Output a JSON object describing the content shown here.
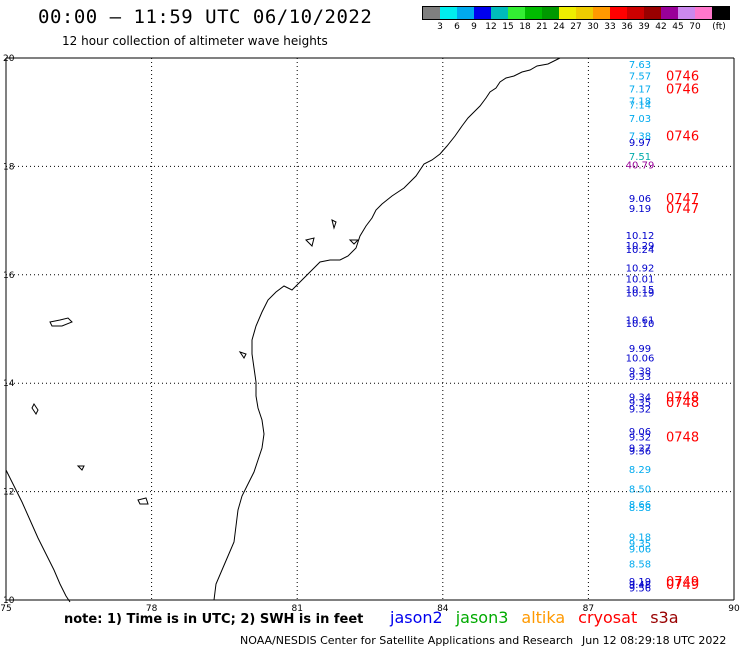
{
  "header": {
    "title": "00:00 – 11:59 UTC 06/10/2022",
    "subtitle": "12 hour collection of altimeter wave heights"
  },
  "legend": {
    "unit": "(ft)",
    "labels": [
      "3",
      "6",
      "9",
      "12",
      "15",
      "18",
      "21",
      "24",
      "27",
      "30",
      "33",
      "36",
      "39",
      "42",
      "45",
      "70"
    ],
    "colors": [
      "#7f7f7f",
      "#00eeee",
      "#00aaee",
      "#0000ee",
      "#00bbbb",
      "#33ee33",
      "#00bb00",
      "#009900",
      "#eeee00",
      "#eecc00",
      "#ff9900",
      "#ff0000",
      "#cc0000",
      "#990000",
      "#990099",
      "#cc88ee",
      "#ff77cc",
      "#000000"
    ]
  },
  "map": {
    "lon_ticks": [
      "75",
      "78",
      "81",
      "84",
      "87",
      "90"
    ],
    "lat_ticks": [
      "20",
      "18",
      "16",
      "14",
      "12",
      "10"
    ],
    "lon_range": [
      75,
      90
    ],
    "lat_range": [
      10,
      20
    ],
    "grid": true
  },
  "observations": [
    {
      "lat": 19.82,
      "v": "7.63",
      "color": "#00aaee"
    },
    {
      "lat": 19.6,
      "v": "7.57",
      "color": "#00aaee",
      "time": "0746"
    },
    {
      "lat": 19.36,
      "v": "7.17",
      "color": "#00aaee",
      "time": "0746"
    },
    {
      "lat": 19.14,
      "v": "7.18",
      "color": "#00aaee"
    },
    {
      "lat": 19.07,
      "v": "7.14",
      "color": "#00aaee"
    },
    {
      "lat": 18.82,
      "v": "7.03",
      "color": "#00aaee"
    },
    {
      "lat": 18.5,
      "v": "7.38",
      "color": "#00aaee",
      "time": "0746"
    },
    {
      "lat": 18.38,
      "v": "9.97",
      "color": "#0000cc"
    },
    {
      "lat": 18.12,
      "v": "7.51",
      "color": "#00aaaa"
    },
    {
      "lat": 17.96,
      "v": "40.79",
      "color": "#990099"
    },
    {
      "lat": 17.34,
      "v": "9.06",
      "color": "#0000cc",
      "time": "0747"
    },
    {
      "lat": 17.16,
      "v": "9.19",
      "color": "#0000cc",
      "time": "0747"
    },
    {
      "lat": 16.66,
      "v": "10.12",
      "color": "#0000cc"
    },
    {
      "lat": 16.48,
      "v": "10.29",
      "color": "#0000cc"
    },
    {
      "lat": 16.4,
      "v": "10.24",
      "color": "#0000cc"
    },
    {
      "lat": 16.06,
      "v": "10.92",
      "color": "#0000cc"
    },
    {
      "lat": 15.86,
      "v": "10.01",
      "color": "#0000cc"
    },
    {
      "lat": 15.66,
      "v": "10.15",
      "color": "#0000cc"
    },
    {
      "lat": 15.6,
      "v": "10.19",
      "color": "#0000cc"
    },
    {
      "lat": 15.1,
      "v": "10.61",
      "color": "#0000cc"
    },
    {
      "lat": 15.04,
      "v": "10.10",
      "color": "#0000cc"
    },
    {
      "lat": 14.58,
      "v": "9.99",
      "color": "#0000cc"
    },
    {
      "lat": 14.4,
      "v": "10.06",
      "color": "#0000cc"
    },
    {
      "lat": 14.16,
      "v": "9.38",
      "color": "#0000cc"
    },
    {
      "lat": 14.06,
      "v": "9.33",
      "color": "#0000cc"
    },
    {
      "lat": 13.68,
      "v": "9.34",
      "color": "#0000cc",
      "time": "0748"
    },
    {
      "lat": 13.58,
      "v": "9.35",
      "color": "#0000cc",
      "time": "0748"
    },
    {
      "lat": 13.46,
      "v": "9.32",
      "color": "#0000cc"
    },
    {
      "lat": 13.04,
      "v": "9.06",
      "color": "#0000cc"
    },
    {
      "lat": 12.94,
      "v": "9.32",
      "color": "#0000cc",
      "time": "0748"
    },
    {
      "lat": 12.74,
      "v": "9.27",
      "color": "#0000cc"
    },
    {
      "lat": 12.68,
      "v": "9.36",
      "color": "#0000cc"
    },
    {
      "lat": 12.34,
      "v": "8.29",
      "color": "#00aaee"
    },
    {
      "lat": 11.98,
      "v": "8.50",
      "color": "#00aaee"
    },
    {
      "lat": 11.7,
      "v": "8.66",
      "color": "#00aaee"
    },
    {
      "lat": 11.64,
      "v": "8.58",
      "color": "#00aaee"
    },
    {
      "lat": 11.1,
      "v": "9.18",
      "color": "#00aaee"
    },
    {
      "lat": 10.98,
      "v": "9.35",
      "color": "#00aaee"
    },
    {
      "lat": 10.88,
      "v": "9.06",
      "color": "#00aaee"
    },
    {
      "lat": 10.6,
      "v": "8.58",
      "color": "#00aaee"
    },
    {
      "lat": 10.28,
      "v": "9.19",
      "color": "#0000cc",
      "time": "0749"
    },
    {
      "lat": 10.22,
      "v": "9.48",
      "color": "#0000cc",
      "time": "0749"
    },
    {
      "lat": 10.16,
      "v": "9.56",
      "color": "#0000cc"
    }
  ],
  "footer": {
    "note": "note:  1) Time is in UTC; 2) SWH is in feet",
    "satellites": [
      {
        "name": "jason2",
        "color": "#0000ee"
      },
      {
        "name": "jason3",
        "color": "#00aa00"
      },
      {
        "name": "altika",
        "color": "#ff9900"
      },
      {
        "name": "cryosat",
        "color": "#ff0000"
      },
      {
        "name": "s3a",
        "color": "#990000"
      }
    ],
    "credit": "NOAA/NESDIS Center for Satellite Applications and Research",
    "generated": "Jun 12 08:29:18 UTC 2022"
  }
}
